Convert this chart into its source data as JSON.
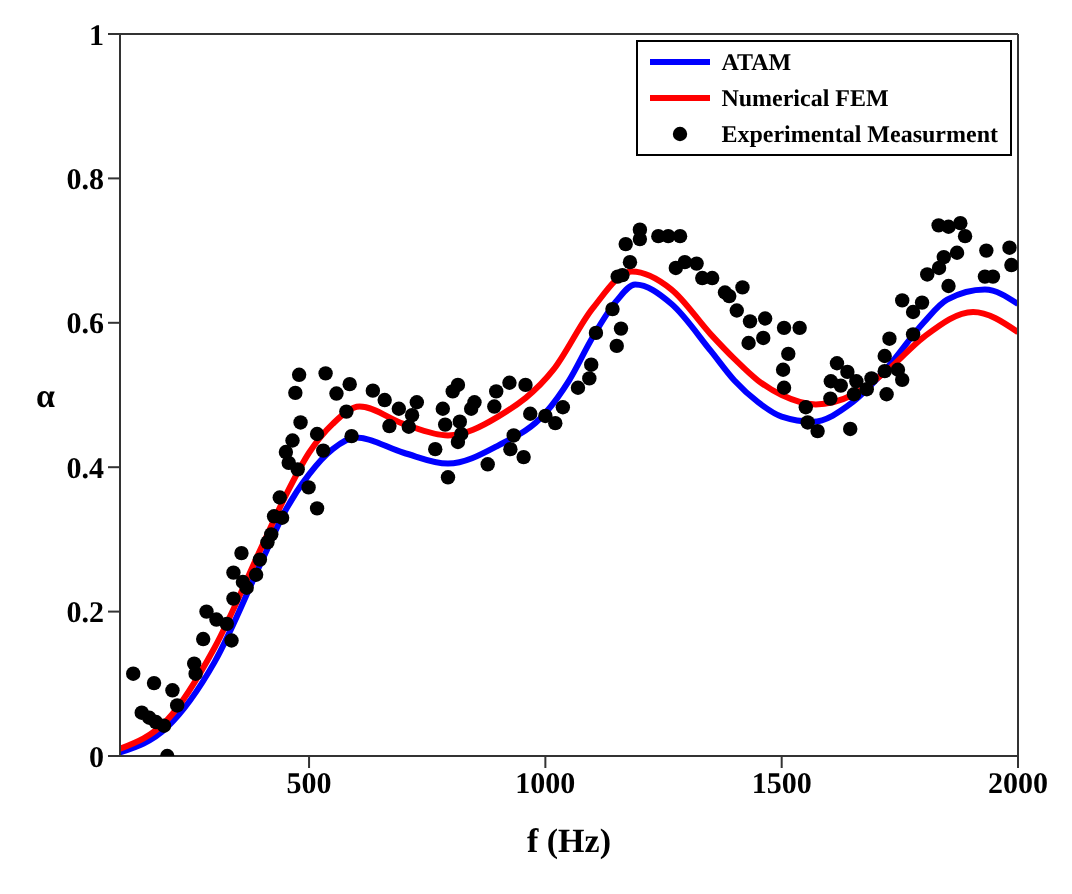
{
  "chart_data": {
    "type": "line",
    "xlabel": "f (Hz)",
    "ylabel": "α",
    "xlim": [
      100,
      2000
    ],
    "xticks": [
      500,
      1000,
      1500,
      2000
    ],
    "ylim": [
      0,
      1
    ],
    "yticks": [
      0,
      0.2,
      0.4,
      0.6,
      0.8,
      1
    ],
    "legend": "top right",
    "series": [
      {
        "name": "ATAM",
        "color": "#0000ff",
        "marker": "none",
        "line_style": "solid",
        "x": [
          100,
          200,
          300,
          400,
          450,
          500,
          550,
          600,
          700,
          794,
          900,
          1000,
          1050,
          1100,
          1150,
          1190,
          1267,
          1350,
          1400,
          1450,
          1500,
          1565,
          1650,
          1725,
          1800,
          1850,
          1930,
          2000
        ],
        "values": [
          0.005,
          0.04,
          0.13,
          0.27,
          0.34,
          0.39,
          0.425,
          0.441,
          0.42,
          0.405,
          0.43,
          0.475,
          0.52,
          0.58,
          0.63,
          0.653,
          0.626,
          0.561,
          0.52,
          0.49,
          0.47,
          0.463,
          0.49,
          0.539,
          0.6,
          0.632,
          0.646,
          0.626
        ]
      },
      {
        "name": "Numerical FEM",
        "color": "#ff0000",
        "marker": "none",
        "line_style": "solid",
        "x": [
          100,
          200,
          300,
          400,
          450,
          500,
          550,
          607,
          700,
          794,
          900,
          1017,
          1100,
          1183,
          1267,
          1350,
          1400,
          1450,
          1500,
          1572,
          1650,
          1725,
          1800,
          1905,
          2000
        ],
        "values": [
          0.01,
          0.05,
          0.15,
          0.29,
          0.36,
          0.42,
          0.46,
          0.484,
          0.46,
          0.444,
          0.47,
          0.535,
          0.62,
          0.671,
          0.646,
          0.584,
          0.55,
          0.52,
          0.5,
          0.487,
          0.5,
          0.535,
          0.58,
          0.615,
          0.587
        ]
      },
      {
        "name": "Experimental Measurment",
        "type": "scatter",
        "color": "#000000",
        "marker": "circle",
        "x": [
          128,
          146,
          162,
          172,
          176,
          193,
          200,
          211,
          221,
          257,
          260,
          276,
          283,
          304,
          326,
          336,
          340,
          340,
          357,
          360,
          368,
          388,
          396,
          412,
          420,
          426,
          438,
          443,
          451,
          457,
          465,
          471,
          476,
          479,
          482,
          499,
          517,
          517,
          530,
          535,
          558,
          579,
          586,
          590,
          635,
          660,
          670,
          690,
          711,
          718,
          728,
          767,
          783,
          788,
          794,
          804,
          815,
          815,
          819,
          822,
          843,
          850,
          878,
          892,
          896,
          924,
          926,
          933,
          954,
          958,
          968,
          1000,
          1021,
          1037,
          1069,
          1093,
          1097,
          1107,
          1142,
          1151,
          1153,
          1160,
          1163,
          1170,
          1179,
          1200,
          1200,
          1239,
          1260,
          1276,
          1285,
          1295,
          1320,
          1332,
          1353,
          1380,
          1389,
          1405,
          1417,
          1430,
          1433,
          1461,
          1465,
          1503,
          1505,
          1505,
          1514,
          1538,
          1551,
          1555,
          1576,
          1603,
          1604,
          1617,
          1625,
          1639,
          1645,
          1653,
          1658,
          1680,
          1690,
          1718,
          1718,
          1722,
          1728,
          1746,
          1755,
          1755,
          1778,
          1778,
          1797,
          1808,
          1832,
          1833,
          1843,
          1853,
          1853,
          1871,
          1878,
          1888,
          1930,
          1933,
          1947,
          1982,
          1986
        ],
        "values": [
          0.114,
          0.06,
          0.053,
          0.101,
          0.047,
          0.042,
          0.0,
          0.091,
          0.07,
          0.128,
          0.114,
          0.162,
          0.2,
          0.189,
          0.183,
          0.16,
          0.218,
          0.254,
          0.281,
          0.241,
          0.233,
          0.251,
          0.272,
          0.296,
          0.307,
          0.332,
          0.358,
          0.33,
          0.421,
          0.406,
          0.437,
          0.503,
          0.397,
          0.528,
          0.462,
          0.372,
          0.343,
          0.446,
          0.423,
          0.53,
          0.502,
          0.477,
          0.515,
          0.443,
          0.506,
          0.493,
          0.457,
          0.481,
          0.456,
          0.472,
          0.49,
          0.425,
          0.481,
          0.459,
          0.386,
          0.505,
          0.514,
          0.435,
          0.463,
          0.446,
          0.481,
          0.49,
          0.404,
          0.484,
          0.505,
          0.517,
          0.425,
          0.444,
          0.414,
          0.514,
          0.474,
          0.471,
          0.461,
          0.483,
          0.51,
          0.523,
          0.542,
          0.586,
          0.619,
          0.568,
          0.664,
          0.592,
          0.666,
          0.709,
          0.684,
          0.729,
          0.716,
          0.72,
          0.72,
          0.676,
          0.72,
          0.684,
          0.682,
          0.662,
          0.662,
          0.642,
          0.637,
          0.617,
          0.649,
          0.572,
          0.602,
          0.579,
          0.606,
          0.535,
          0.593,
          0.51,
          0.557,
          0.593,
          0.483,
          0.462,
          0.45,
          0.495,
          0.519,
          0.544,
          0.513,
          0.532,
          0.453,
          0.501,
          0.519,
          0.508,
          0.523,
          0.554,
          0.533,
          0.501,
          0.578,
          0.535,
          0.521,
          0.631,
          0.615,
          0.584,
          0.628,
          0.667,
          0.735,
          0.676,
          0.691,
          0.733,
          0.651,
          0.697,
          0.738,
          0.72,
          0.664,
          0.7,
          0.664,
          0.704,
          0.68
        ]
      }
    ]
  }
}
